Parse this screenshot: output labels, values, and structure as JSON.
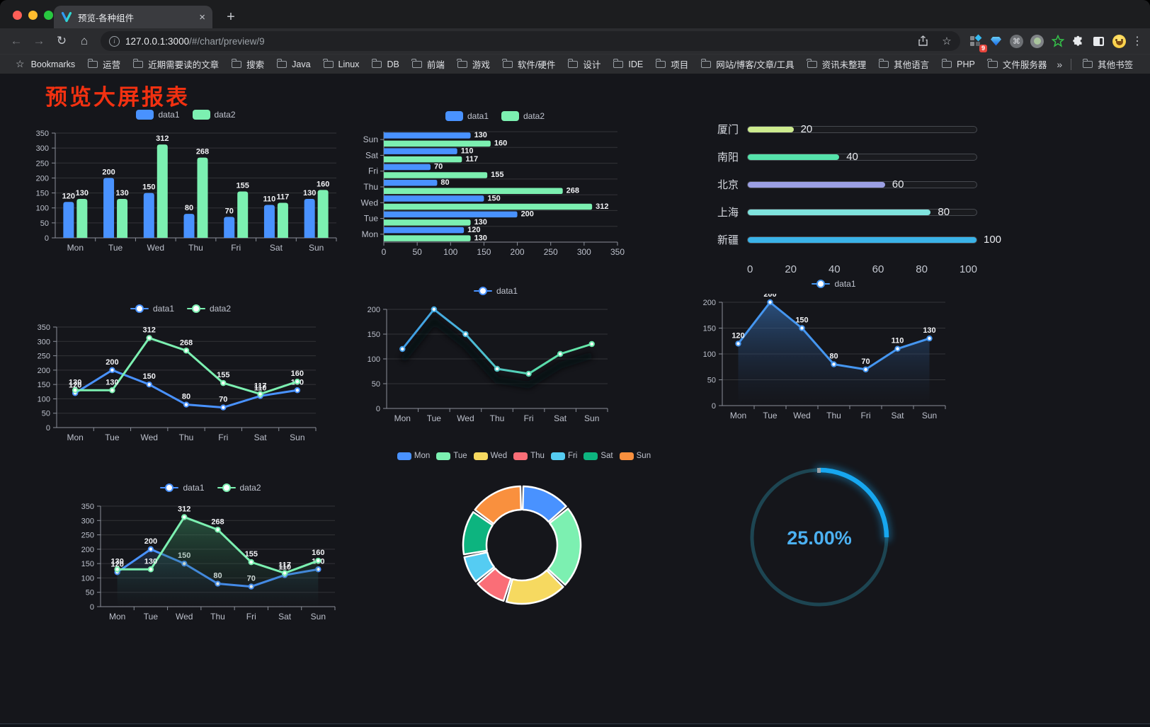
{
  "browser": {
    "tab_title": "预览-各种组件",
    "url_host": "127.0.0.1:3000",
    "url_path": "/#/chart/preview/9",
    "bookmarks_label": "Bookmarks",
    "bookmarks": [
      "运营",
      "近期需要读的文章",
      "搜索",
      "Java",
      "Linux",
      "DB",
      "前端",
      "游戏",
      "软件/硬件",
      "设计",
      "IDE",
      "项目",
      "网站/博客/文章/工具",
      "资讯未整理",
      "其他语言",
      "PHP",
      "文件服务器"
    ],
    "other_bookmarks": "其他书签",
    "extension_badge": "9",
    "icons": {
      "back": "←",
      "forward": "→",
      "reload": "↻",
      "home": "⌂",
      "share": "⬆",
      "star": "☆",
      "menu": "⋮",
      "close": "×",
      "new_tab": "+",
      "overflow": "»",
      "bookmarks_star": "☆",
      "command": "⌘"
    }
  },
  "page": {
    "title": "预览大屏报表",
    "title_color": "#f23111"
  },
  "theme": {
    "axis": "#8a8f99",
    "label": "#bcc0cb",
    "grid": "rgba(255,255,255,0.13)",
    "data_label": "#f0f1f4",
    "background": "#15161b",
    "series_blue": "#4992ff",
    "series_green": "#7cf0b1"
  },
  "chart_data": [
    {
      "id": "c1",
      "type": "bar",
      "categories": [
        "Mon",
        "Tue",
        "Wed",
        "Thu",
        "Fri",
        "Sat",
        "Sun"
      ],
      "series": [
        {
          "name": "data1",
          "color": "#4992ff",
          "values": [
            120,
            200,
            150,
            80,
            70,
            110,
            130
          ]
        },
        {
          "name": "data2",
          "color": "#7cf0b1",
          "values": [
            130,
            130,
            312,
            268,
            155,
            117,
            160
          ]
        }
      ],
      "ylim": [
        0,
        350
      ],
      "ytick": 50
    },
    {
      "id": "c2",
      "type": "bar-horizontal",
      "categories": [
        "Mon",
        "Tue",
        "Wed",
        "Thu",
        "Fri",
        "Sat",
        "Sun"
      ],
      "series": [
        {
          "name": "data1",
          "color": "#4992ff",
          "values": [
            120,
            200,
            150,
            80,
            70,
            110,
            130
          ]
        },
        {
          "name": "data2",
          "color": "#7cf0b1",
          "values": [
            130,
            130,
            312,
            268,
            155,
            117,
            160
          ]
        }
      ],
      "xlim": [
        0,
        350
      ],
      "xtick": 50
    },
    {
      "id": "c3",
      "type": "progress-bars",
      "max": 100,
      "ticks": [
        0,
        20,
        40,
        60,
        80,
        100
      ],
      "rows": [
        {
          "label": "厦门",
          "value": 20,
          "color": "#cdeb8f"
        },
        {
          "label": "南阳",
          "value": 40,
          "color": "#55e3ab"
        },
        {
          "label": "北京",
          "value": 60,
          "color": "#9b9fe3"
        },
        {
          "label": "上海",
          "value": 80,
          "color": "#7fe3de"
        },
        {
          "label": "新疆",
          "value": 100,
          "color": "#3ab3e8"
        }
      ]
    },
    {
      "id": "c4",
      "type": "line",
      "categories": [
        "Mon",
        "Tue",
        "Wed",
        "Thu",
        "Fri",
        "Sat",
        "Sun"
      ],
      "series": [
        {
          "name": "data1",
          "color": "#4992ff",
          "values": [
            120,
            200,
            150,
            80,
            70,
            110,
            130
          ],
          "labels": true
        },
        {
          "name": "data2",
          "color": "#7cf0b1",
          "values": [
            130,
            130,
            312,
            268,
            155,
            117,
            160
          ],
          "labels": true
        }
      ],
      "ylim": [
        0,
        350
      ],
      "ytick": 50
    },
    {
      "id": "c5",
      "type": "line",
      "categories": [
        "Mon",
        "Tue",
        "Wed",
        "Thu",
        "Fri",
        "Sat",
        "Sun"
      ],
      "series": [
        {
          "name": "data1",
          "gradient": [
            "#3c95e8",
            "#49b4dd",
            "#57d9ab",
            "#6ceda8"
          ],
          "legend_color": "#4992ff",
          "values": [
            120,
            200,
            150,
            80,
            70,
            110,
            130
          ],
          "labels": false
        }
      ],
      "ylim": [
        0,
        200
      ],
      "ytick": 50,
      "shadow": true
    },
    {
      "id": "c6",
      "type": "line",
      "categories": [
        "Mon",
        "Tue",
        "Wed",
        "Thu",
        "Fri",
        "Sat",
        "Sun"
      ],
      "series": [
        {
          "name": "data1",
          "color": "#4596f0",
          "values": [
            120,
            200,
            150,
            80,
            70,
            110,
            130
          ],
          "labels": true,
          "area": [
            "rgba(54,110,176,0.65)",
            "rgba(30,50,80,0)"
          ]
        }
      ],
      "ylim": [
        0,
        200
      ],
      "ytick": 50
    },
    {
      "id": "c7",
      "type": "line",
      "categories": [
        "Mon",
        "Tue",
        "Wed",
        "Thu",
        "Fri",
        "Sat",
        "Sun"
      ],
      "series": [
        {
          "name": "data1",
          "color": "#4992ff",
          "values": [
            120,
            200,
            150,
            80,
            70,
            110,
            130
          ],
          "labels": true,
          "area": [
            "rgba(62,120,190,0.55)",
            "rgba(30,50,80,0)"
          ]
        },
        {
          "name": "data2",
          "color": "#7cf0b1",
          "values": [
            130,
            130,
            312,
            268,
            155,
            117,
            160
          ],
          "labels": true,
          "area": [
            "rgba(58,140,96,0.6)",
            "rgba(30,70,50,0)"
          ]
        }
      ],
      "ylim": [
        0,
        350
      ],
      "ytick": 50
    },
    {
      "id": "c8",
      "type": "donut",
      "labels": [
        "Mon",
        "Tue",
        "Wed",
        "Thu",
        "Fri",
        "Sat",
        "Sun"
      ],
      "values": [
        120,
        200,
        150,
        80,
        70,
        110,
        130
      ],
      "colors": [
        "#4992ff",
        "#7cf0b1",
        "#f6d960",
        "#fa6e77",
        "#55ccf2",
        "#0db47f",
        "#f9903e"
      ]
    },
    {
      "id": "c9",
      "type": "ring-progress",
      "value_text": "25.00%",
      "percent": 25,
      "color": "#17a7f0",
      "text_color": "#4cb1f2",
      "track_color": "#1d4552"
    }
  ]
}
